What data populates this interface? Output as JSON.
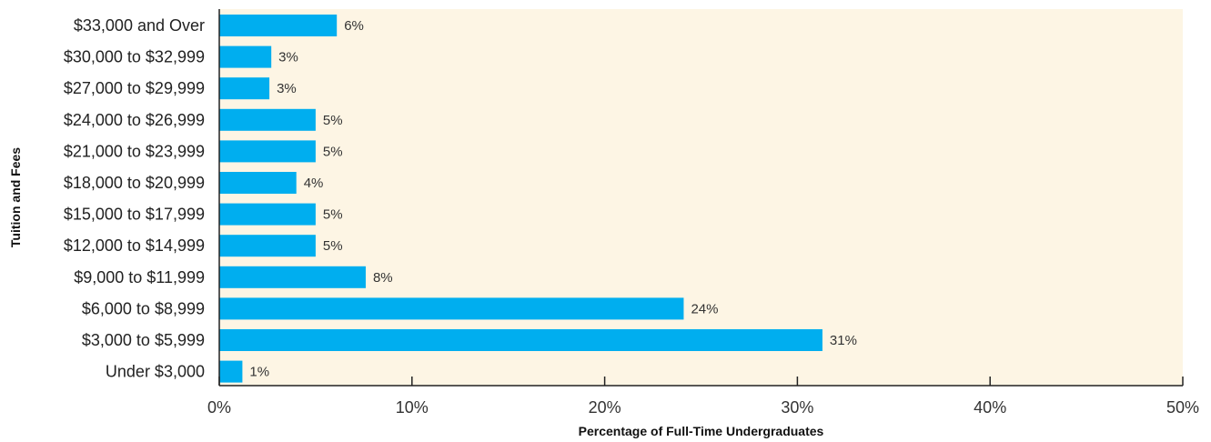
{
  "chart_data": {
    "type": "bar",
    "orientation": "horizontal",
    "title": "",
    "xlabel": "Percentage of Full-Time Undergraduates",
    "ylabel": "Tuition and Fees",
    "xlim": [
      0,
      50
    ],
    "x_ticks": [
      0,
      10,
      20,
      30,
      40,
      50
    ],
    "x_tick_labels": [
      "0%",
      "10%",
      "20%",
      "30%",
      "40%",
      "50%"
    ],
    "categories": [
      "$33,000 and Over",
      "$30,000 to $32,999",
      "$27,000 to $29,999",
      "$24,000 to $26,999",
      "$21,000 to $23,999",
      "$18,000 to $20,999",
      "$15,000 to $17,999",
      "$12,000 to $14,999",
      "$9,000 to $11,999",
      "$6,000 to $8,999",
      "$3,000 to $5,999",
      "Under $3,000"
    ],
    "values": [
      6,
      3,
      3,
      5,
      5,
      4,
      5,
      5,
      8,
      24,
      31,
      1
    ],
    "bar_lengths": [
      6.1,
      2.7,
      2.6,
      5.0,
      5.0,
      4.0,
      5.0,
      5.0,
      7.6,
      24.1,
      31.3,
      1.2
    ],
    "value_labels": [
      "6%",
      "3%",
      "3%",
      "5%",
      "5%",
      "4%",
      "5%",
      "5%",
      "8%",
      "24%",
      "31%",
      "1%"
    ],
    "grid": false,
    "legend": "none",
    "colors": {
      "bar": "#00aeef",
      "plot_background": "#fdf5e4",
      "axis": "#222222"
    }
  }
}
